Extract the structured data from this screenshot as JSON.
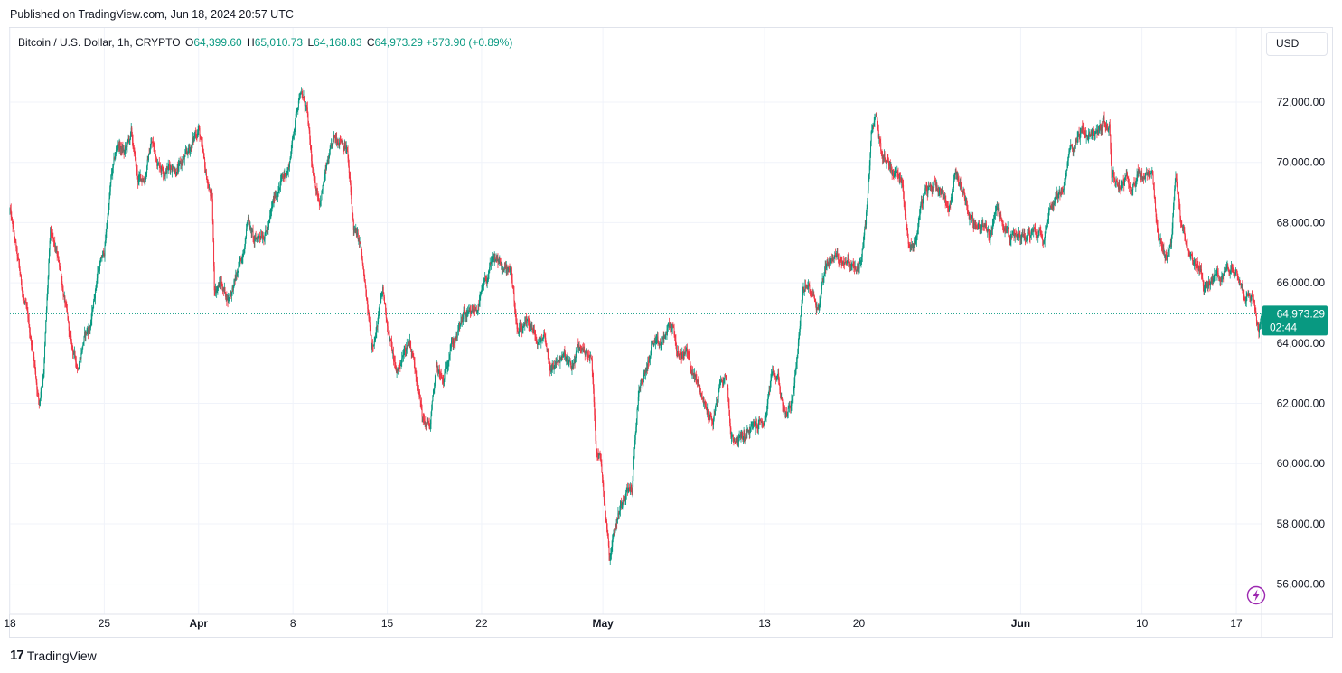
{
  "header": {
    "published": "Published on TradingView.com, Jun 18, 2024 20:57 UTC"
  },
  "legend": {
    "symbol": "Bitcoin / U.S. Dollar, 1h, CRYPTO",
    "open_label": "O",
    "open": "64,399.60",
    "high_label": "H",
    "high": "65,010.73",
    "low_label": "L",
    "low": "64,168.83",
    "close_label": "C",
    "close": "64,973.29",
    "change": "+573.90 (+0.89%)"
  },
  "currency_button": "USD",
  "footer": {
    "logo_mark": "17",
    "logo_text": "TradingView"
  },
  "colors": {
    "up": "#089981",
    "down": "#f23645",
    "grid": "#f0f3fa",
    "text": "#131722"
  },
  "icons": {
    "flash": "lightning-icon"
  },
  "chart_data": {
    "type": "candlestick",
    "interval": "1h",
    "ylim": [
      55000,
      73500
    ],
    "y_ticks": [
      {
        "value": 56000,
        "label": "56,000.00"
      },
      {
        "value": 58000,
        "label": "58,000.00"
      },
      {
        "value": 60000,
        "label": "60,000.00"
      },
      {
        "value": 62000,
        "label": "62,000.00"
      },
      {
        "value": 64000,
        "label": "64,000.00"
      },
      {
        "value": 66000,
        "label": "66,000.00"
      },
      {
        "value": 68000,
        "label": "68,000.00"
      },
      {
        "value": 70000,
        "label": "70,000.00"
      },
      {
        "value": 72000,
        "label": "72,000.00"
      }
    ],
    "x_range": [
      "2024-03-18",
      "2024-06-18T21:00"
    ],
    "x_ticks": [
      {
        "date": "2024-03-18",
        "label": "18"
      },
      {
        "date": "2024-03-25",
        "label": "25"
      },
      {
        "date": "2024-04-01",
        "label": "Apr"
      },
      {
        "date": "2024-04-08",
        "label": "8"
      },
      {
        "date": "2024-04-15",
        "label": "15"
      },
      {
        "date": "2024-04-22",
        "label": "22"
      },
      {
        "date": "2024-05-01",
        "label": "May"
      },
      {
        "date": "2024-05-13",
        "label": "13"
      },
      {
        "date": "2024-05-20",
        "label": "20"
      },
      {
        "date": "2024-06-01",
        "label": "Jun"
      },
      {
        "date": "2024-06-10",
        "label": "10"
      },
      {
        "date": "2024-06-17",
        "label": "17"
      }
    ],
    "price_path": [
      [
        "2024-03-18T00:00",
        68400
      ],
      [
        "2024-03-18T18:00",
        66200
      ],
      [
        "2024-03-19T18:00",
        63600
      ],
      [
        "2024-03-20T04:00",
        62000
      ],
      [
        "2024-03-20T12:00",
        63200
      ],
      [
        "2024-03-21T00:00",
        67600
      ],
      [
        "2024-03-21T18:00",
        66400
      ],
      [
        "2024-03-22T12:00",
        64000
      ],
      [
        "2024-03-23T00:00",
        63200
      ],
      [
        "2024-03-23T12:00",
        64200
      ],
      [
        "2024-03-24T00:00",
        64600
      ],
      [
        "2024-03-24T12:00",
        66400
      ],
      [
        "2024-03-25T00:00",
        67000
      ],
      [
        "2024-03-25T12:00",
        69400
      ],
      [
        "2024-03-26T00:00",
        70600
      ],
      [
        "2024-03-26T12:00",
        70300
      ],
      [
        "2024-03-27T00:00",
        70900
      ],
      [
        "2024-03-27T12:00",
        69400
      ],
      [
        "2024-03-28T00:00",
        69500
      ],
      [
        "2024-03-28T12:00",
        70700
      ],
      [
        "2024-03-29T00:00",
        70000
      ],
      [
        "2024-03-29T12:00",
        69800
      ],
      [
        "2024-03-30T00:00",
        69900
      ],
      [
        "2024-03-30T12:00",
        69800
      ],
      [
        "2024-03-31T00:00",
        70100
      ],
      [
        "2024-03-31T12:00",
        70600
      ],
      [
        "2024-04-01T00:00",
        71200
      ],
      [
        "2024-04-01T12:00",
        69600
      ],
      [
        "2024-04-02T00:00",
        68700
      ],
      [
        "2024-04-02T04:00",
        65800
      ],
      [
        "2024-04-02T16:00",
        66000
      ],
      [
        "2024-04-03T04:00",
        65500
      ],
      [
        "2024-04-03T16:00",
        66000
      ],
      [
        "2024-04-04T04:00",
        66700
      ],
      [
        "2024-04-04T16:00",
        68200
      ],
      [
        "2024-04-05T04:00",
        67300
      ],
      [
        "2024-04-05T16:00",
        67700
      ],
      [
        "2024-04-06T04:00",
        67800
      ],
      [
        "2024-04-06T16:00",
        68900
      ],
      [
        "2024-04-07T04:00",
        69400
      ],
      [
        "2024-04-07T16:00",
        69800
      ],
      [
        "2024-04-08T04:00",
        71400
      ],
      [
        "2024-04-08T12:00",
        72400
      ],
      [
        "2024-04-09T00:00",
        71800
      ],
      [
        "2024-04-09T12:00",
        69400
      ],
      [
        "2024-04-10T00:00",
        68800
      ],
      [
        "2024-04-10T12:00",
        69800
      ],
      [
        "2024-04-11T00:00",
        70600
      ],
      [
        "2024-04-11T12:00",
        70900
      ],
      [
        "2024-04-12T00:00",
        70500
      ],
      [
        "2024-04-12T12:00",
        67800
      ],
      [
        "2024-04-13T00:00",
        67200
      ],
      [
        "2024-04-13T12:00",
        65200
      ],
      [
        "2024-04-13T20:00",
        64000
      ],
      [
        "2024-04-14T04:00",
        64400
      ],
      [
        "2024-04-14T16:00",
        65700
      ],
      [
        "2024-04-15T04:00",
        64200
      ],
      [
        "2024-04-15T16:00",
        63000
      ],
      [
        "2024-04-16T04:00",
        63600
      ],
      [
        "2024-04-16T16:00",
        64100
      ],
      [
        "2024-04-17T04:00",
        63000
      ],
      [
        "2024-04-17T16:00",
        61400
      ],
      [
        "2024-04-18T04:00",
        61200
      ],
      [
        "2024-04-18T16:00",
        63200
      ],
      [
        "2024-04-19T04:00",
        62600
      ],
      [
        "2024-04-19T16:00",
        64000
      ],
      [
        "2024-04-20T04:00",
        64200
      ],
      [
        "2024-04-20T16:00",
        64900
      ],
      [
        "2024-04-21T04:00",
        64800
      ],
      [
        "2024-04-21T16:00",
        65200
      ],
      [
        "2024-04-22T04:00",
        65800
      ],
      [
        "2024-04-22T16:00",
        66500
      ],
      [
        "2024-04-23T04:00",
        66800
      ],
      [
        "2024-04-23T16:00",
        66300
      ],
      [
        "2024-04-24T04:00",
        66600
      ],
      [
        "2024-04-24T16:00",
        64300
      ],
      [
        "2024-04-25T04:00",
        64400
      ],
      [
        "2024-04-25T16:00",
        64600
      ],
      [
        "2024-04-26T04:00",
        63900
      ],
      [
        "2024-04-26T16:00",
        64300
      ],
      [
        "2024-04-27T04:00",
        63100
      ],
      [
        "2024-04-27T16:00",
        63500
      ],
      [
        "2024-04-28T04:00",
        63500
      ],
      [
        "2024-04-28T16:00",
        63100
      ],
      [
        "2024-04-29T04:00",
        63800
      ],
      [
        "2024-04-29T16:00",
        63800
      ],
      [
        "2024-04-30T04:00",
        63400
      ],
      [
        "2024-04-30T12:00",
        60600
      ],
      [
        "2024-04-30T20:00",
        60200
      ],
      [
        "2024-05-01T06:00",
        58200
      ],
      [
        "2024-05-01T12:00",
        57000
      ],
      [
        "2024-05-01T20:00",
        57800
      ],
      [
        "2024-05-02T06:00",
        58500
      ],
      [
        "2024-05-02T16:00",
        59200
      ],
      [
        "2024-05-03T04:00",
        59200
      ],
      [
        "2024-05-03T16:00",
        62500
      ],
      [
        "2024-05-04T04:00",
        63000
      ],
      [
        "2024-05-04T16:00",
        64000
      ],
      [
        "2024-05-05T04:00",
        63800
      ],
      [
        "2024-05-05T16:00",
        64300
      ],
      [
        "2024-05-06T04:00",
        64600
      ],
      [
        "2024-05-06T16:00",
        63400
      ],
      [
        "2024-05-07T04:00",
        63800
      ],
      [
        "2024-05-07T16:00",
        63000
      ],
      [
        "2024-05-08T04:00",
        62500
      ],
      [
        "2024-05-08T16:00",
        61800
      ],
      [
        "2024-05-09T04:00",
        61400
      ],
      [
        "2024-05-09T16:00",
        62600
      ],
      [
        "2024-05-10T04:00",
        62900
      ],
      [
        "2024-05-10T12:00",
        61000
      ],
      [
        "2024-05-11T00:00",
        60800
      ],
      [
        "2024-05-11T12:00",
        60900
      ],
      [
        "2024-05-12T00:00",
        61100
      ],
      [
        "2024-05-12T12:00",
        61300
      ],
      [
        "2024-05-13T00:00",
        61400
      ],
      [
        "2024-05-13T12:00",
        62800
      ],
      [
        "2024-05-14T00:00",
        62900
      ],
      [
        "2024-05-14T12:00",
        61600
      ],
      [
        "2024-05-15T00:00",
        62000
      ],
      [
        "2024-05-15T08:00",
        63200
      ],
      [
        "2024-05-15T20:00",
        65800
      ],
      [
        "2024-05-16T12:00",
        65800
      ],
      [
        "2024-05-17T00:00",
        65200
      ],
      [
        "2024-05-17T12:00",
        66600
      ],
      [
        "2024-05-18T00:00",
        66900
      ],
      [
        "2024-05-18T12:00",
        66800
      ],
      [
        "2024-05-19T00:00",
        66800
      ],
      [
        "2024-05-19T12:00",
        66500
      ],
      [
        "2024-05-20T00:00",
        66400
      ],
      [
        "2024-05-20T12:00",
        67800
      ],
      [
        "2024-05-20T22:00",
        70800
      ],
      [
        "2024-05-21T06:00",
        71400
      ],
      [
        "2024-05-21T16:00",
        70300
      ],
      [
        "2024-05-22T04:00",
        70000
      ],
      [
        "2024-05-22T16:00",
        69700
      ],
      [
        "2024-05-23T04:00",
        69600
      ],
      [
        "2024-05-23T16:00",
        67400
      ],
      [
        "2024-05-24T04:00",
        67300
      ],
      [
        "2024-05-24T16:00",
        68700
      ],
      [
        "2024-05-25T04:00",
        69100
      ],
      [
        "2024-05-25T16:00",
        69300
      ],
      [
        "2024-05-26T04:00",
        69100
      ],
      [
        "2024-05-26T16:00",
        68500
      ],
      [
        "2024-05-27T04:00",
        69600
      ],
      [
        "2024-05-27T16:00",
        69200
      ],
      [
        "2024-05-28T04:00",
        68300
      ],
      [
        "2024-05-28T16:00",
        67800
      ],
      [
        "2024-05-29T04:00",
        68000
      ],
      [
        "2024-05-29T16:00",
        67500
      ],
      [
        "2024-05-30T04:00",
        68400
      ],
      [
        "2024-05-30T16:00",
        68200
      ],
      [
        "2024-05-31T04:00",
        67600
      ],
      [
        "2024-05-31T16:00",
        67400
      ],
      [
        "2024-06-01T04:00",
        67600
      ],
      [
        "2024-06-01T16:00",
        67700
      ],
      [
        "2024-06-02T04:00",
        67800
      ],
      [
        "2024-06-02T16:00",
        67600
      ],
      [
        "2024-06-03T04:00",
        68600
      ],
      [
        "2024-06-03T16:00",
        69000
      ],
      [
        "2024-06-04T04:00",
        68900
      ],
      [
        "2024-06-04T16:00",
        70400
      ],
      [
        "2024-06-05T04:00",
        70800
      ],
      [
        "2024-06-05T16:00",
        71100
      ],
      [
        "2024-06-06T04:00",
        70800
      ],
      [
        "2024-06-06T16:00",
        71000
      ],
      [
        "2024-06-07T04:00",
        71300
      ],
      [
        "2024-06-07T14:00",
        71100
      ],
      [
        "2024-06-07T18:00",
        69600
      ],
      [
        "2024-06-08T06:00",
        69300
      ],
      [
        "2024-06-08T18:00",
        69400
      ],
      [
        "2024-06-09T06:00",
        69400
      ],
      [
        "2024-06-09T18:00",
        69600
      ],
      [
        "2024-06-10T06:00",
        69500
      ],
      [
        "2024-06-10T18:00",
        69500
      ],
      [
        "2024-06-11T04:00",
        67400
      ],
      [
        "2024-06-11T16:00",
        66800
      ],
      [
        "2024-06-12T04:00",
        67300
      ],
      [
        "2024-06-12T12:00",
        69500
      ],
      [
        "2024-06-12T20:00",
        68200
      ],
      [
        "2024-06-13T08:00",
        67400
      ],
      [
        "2024-06-13T20:00",
        66500
      ],
      [
        "2024-06-14T08:00",
        66600
      ],
      [
        "2024-06-14T16:00",
        65800
      ],
      [
        "2024-06-15T04:00",
        66100
      ],
      [
        "2024-06-15T16:00",
        66200
      ],
      [
        "2024-06-16T04:00",
        66300
      ],
      [
        "2024-06-16T16:00",
        66500
      ],
      [
        "2024-06-17T04:00",
        66400
      ],
      [
        "2024-06-17T16:00",
        65700
      ],
      [
        "2024-06-18T04:00",
        65600
      ],
      [
        "2024-06-18T12:00",
        64900
      ],
      [
        "2024-06-18T16:00",
        64400
      ],
      [
        "2024-06-18T21:00",
        64973.29
      ]
    ],
    "price_marker": {
      "value": 64973.29,
      "label": "64,973.29",
      "countdown": "02:44"
    }
  }
}
